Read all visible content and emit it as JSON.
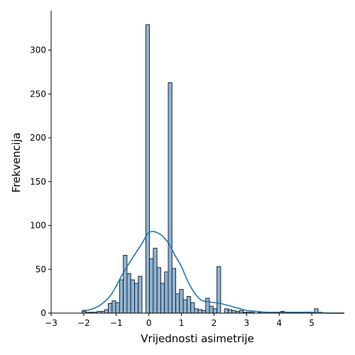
{
  "chart_data": {
    "type": "bar",
    "subtype": "histogram",
    "xlabel": "Vrijednosti asimetrije",
    "ylabel": "Frekvencija",
    "xlim": [
      -3,
      6
    ],
    "ylim": [
      0,
      345
    ],
    "x_ticks": [
      -3,
      -2,
      -1,
      0,
      1,
      2,
      3,
      4,
      5
    ],
    "y_ticks": [
      0,
      50,
      100,
      150,
      200,
      250,
      300
    ],
    "bin_width": 0.115,
    "bins_start": -2.05,
    "values": [
      2,
      1,
      1,
      1,
      2,
      2,
      4,
      11,
      14,
      12,
      38,
      66,
      45,
      38,
      34,
      42,
      0,
      329,
      62,
      74,
      52,
      34,
      47,
      263,
      51,
      22,
      27,
      15,
      19,
      12,
      5,
      4,
      3,
      17,
      8,
      5,
      53,
      0,
      5,
      4,
      3,
      2,
      3,
      1,
      1,
      1,
      0,
      1,
      0,
      1,
      0,
      1,
      0,
      2,
      0,
      1,
      0,
      0,
      0,
      0,
      0,
      0,
      5,
      1,
      0,
      0,
      0,
      0,
      0,
      0,
      0,
      0,
      0,
      0,
      0,
      0,
      0,
      0
    ],
    "kde": {
      "x": [
        -2.05,
        -1.8,
        -1.5,
        -1.2,
        -1.0,
        -0.8,
        -0.5,
        -0.2,
        0.0,
        0.3,
        0.6,
        0.8,
        1.0,
        1.2,
        1.4,
        1.6,
        1.8,
        2.0,
        2.2,
        2.4,
        2.6,
        2.8,
        3.0,
        3.3,
        3.6,
        4.0,
        4.5,
        5.0,
        5.5,
        6.0
      ],
      "y": [
        3,
        4,
        9,
        19,
        31,
        45,
        63,
        80,
        92,
        91,
        80,
        66,
        53,
        36,
        23,
        15,
        13,
        12,
        11,
        9,
        7,
        5,
        3,
        2,
        1,
        1,
        1,
        1,
        0,
        0
      ]
    },
    "colors": {
      "bar_fill": "#8db4d6",
      "bar_edge": "#1a1a1a",
      "kde_line": "#1f77b4"
    },
    "grid": false,
    "legend": false
  }
}
